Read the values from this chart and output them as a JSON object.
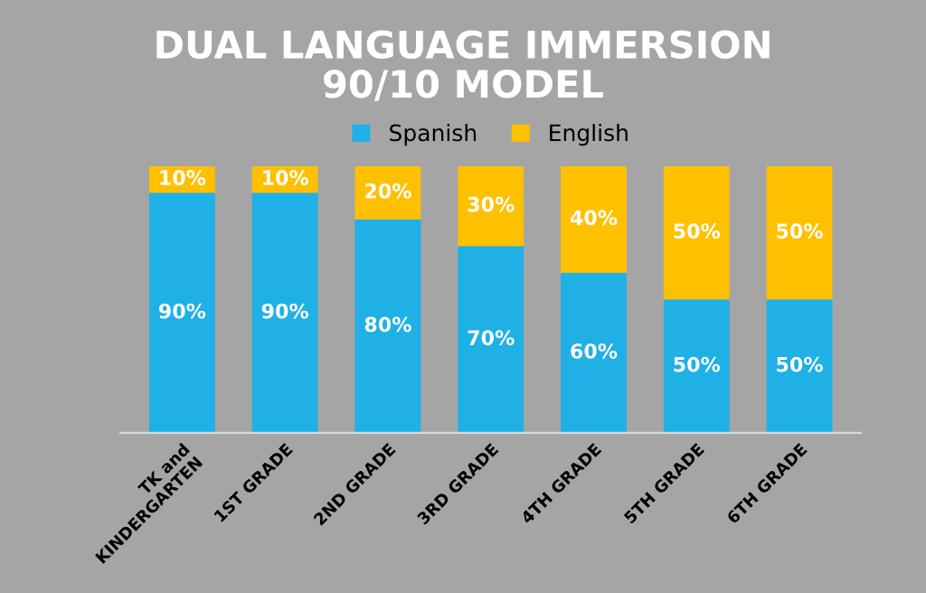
{
  "chart_data": {
    "type": "bar",
    "stacked": true,
    "title": "DUAL LANGUAGE IMMERSION\n90/10 MODEL",
    "categories": [
      "TK and\nKINDERGARTEN",
      "1ST GRADE",
      "2ND GRADE",
      "3RD GRADE",
      "4TH GRADE",
      "5TH GRADE",
      "6TH GRADE"
    ],
    "series": [
      {
        "name": "Spanish",
        "color": "#1fb0e6",
        "values": [
          90,
          90,
          80,
          70,
          60,
          50,
          50
        ],
        "value_labels": [
          "90%",
          "90%",
          "80%",
          "70%",
          "60%",
          "50%",
          "50%"
        ]
      },
      {
        "name": "English",
        "color": "#ffc000",
        "values": [
          10,
          10,
          20,
          30,
          40,
          50,
          50
        ],
        "value_labels": [
          "10%",
          "10%",
          "20%",
          "30%",
          "40%",
          "50%",
          "50%"
        ]
      }
    ],
    "legend": "top",
    "grid": false
  }
}
